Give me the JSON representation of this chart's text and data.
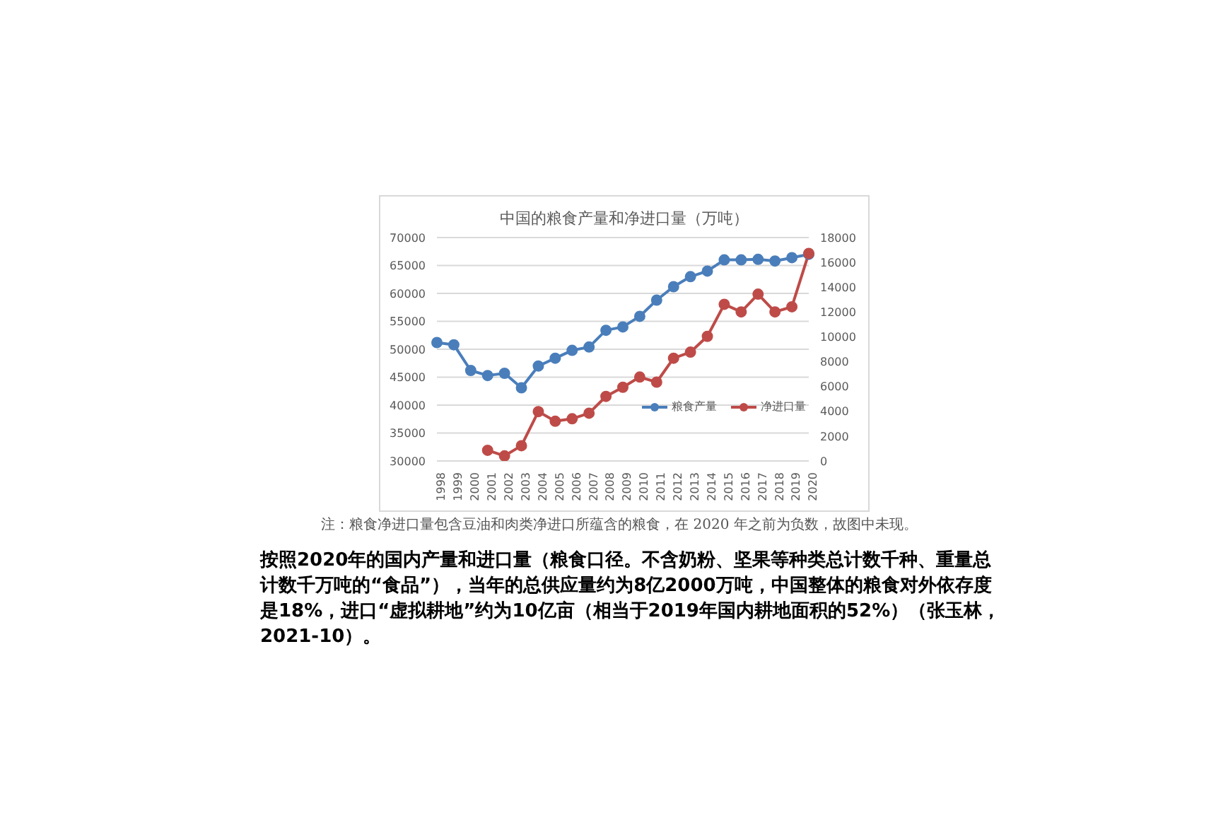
{
  "chart_data": {
    "type": "line",
    "title": "中国的粮食产量和净进口量（万吨）",
    "categories": [
      "1998",
      "1999",
      "2000",
      "2001",
      "2002",
      "2003",
      "2004",
      "2005",
      "2006",
      "2007",
      "2008",
      "2009",
      "2010",
      "2011",
      "2012",
      "2013",
      "2014",
      "2015",
      "2016",
      "2017",
      "2018",
      "2019",
      "2020"
    ],
    "series": [
      {
        "name": "粮食产量",
        "color": "#4a7ebb",
        "values": [
          51200,
          50800,
          46200,
          45300,
          45700,
          43100,
          47000,
          48400,
          49800,
          50400,
          53400,
          54000,
          55900,
          58800,
          61200,
          63000,
          64000,
          66000,
          66000,
          66100,
          65800,
          66400,
          67000
        ]
      },
      {
        "name": "净进口量",
        "color": "#be4b48",
        "axis": "y2",
        "values": [
          null,
          null,
          null,
          860,
          410,
          1230,
          3980,
          3200,
          3400,
          3850,
          5200,
          5940,
          6760,
          6350,
          8280,
          8770,
          10040,
          12620,
          12010,
          13440,
          12010,
          12420,
          16720
        ]
      }
    ],
    "ylim": [
      30000,
      70000
    ],
    "yticks": [
      30000,
      35000,
      40000,
      45000,
      50000,
      55000,
      60000,
      65000,
      70000
    ],
    "y2lim": [
      0,
      18000
    ],
    "y2ticks": [
      0,
      2000,
      4000,
      6000,
      8000,
      10000,
      12000,
      14000,
      16000,
      18000
    ],
    "grid": "y",
    "legend": "right",
    "marker": "circle",
    "line_style": "solid",
    "annotations": [
      "注：粮食净进口量包含豆油和肉类净进口所蕴含的粮食，在 2020 年之前为负数，故图中未现。",
      "按照2020年的国内产量和进口量（粮食口径。不含奶粉、坚果等种类总计数千种、重量总计数千万吨的“食品”），当年的总供应量约为8亿2000万吨，中国整体的粮食对外依存度是18%，进口“虚拟耕地”约为10亿亩（相当于2019年国内耕地面积的52%）（张玉林，2021-10）。"
    ]
  }
}
